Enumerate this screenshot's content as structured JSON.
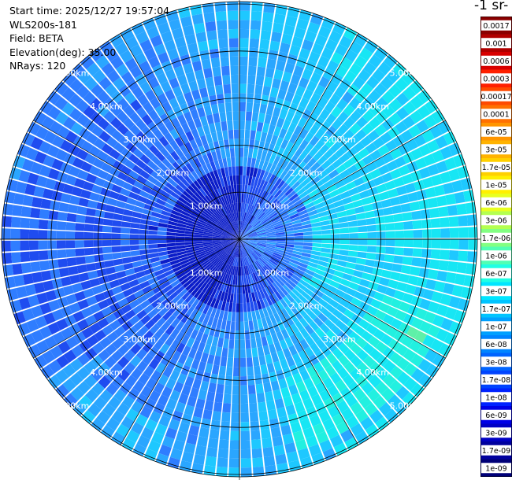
{
  "info": {
    "start_time": "Start time: 2025/12/27 19:57:04",
    "instrument": "WLS200s-181",
    "field": "Field: BETA",
    "elevation": "Elevation(deg): 35.00",
    "nrays": "NRays: 120"
  },
  "colorbar_title": "-1 sr-",
  "chart_data": {
    "type": "heatmap",
    "projection": "polar PPI scan",
    "field": "BETA",
    "elevation_deg": 35.0,
    "n_rays": 120,
    "range_rings_km": [
      1.0,
      2.0,
      3.0,
      4.0,
      5.0
    ],
    "range_ring_labels": [
      "1.00km",
      "2.00km",
      "3.00km",
      "4.00km",
      "5.00km"
    ],
    "azimuth_spokes_deg": [
      0,
      30,
      60,
      90,
      120,
      150,
      180,
      210,
      240,
      270,
      300,
      330
    ],
    "colorbar_ticks": [
      "0.0017",
      "0.001",
      "0.0006",
      "0.0003",
      "0.00017",
      "0.0001",
      "6e-05",
      "3e-05",
      "1.7e-05",
      "1e-05",
      "6e-06",
      "3e-06",
      "1.7e-06",
      "1e-06",
      "6e-07",
      "3e-07",
      "1.7e-07",
      "1e-07",
      "6e-08",
      "3e-08",
      "1.7e-08",
      "1e-08",
      "6e-09",
      "3e-09",
      "1.7e-09",
      "1e-09"
    ],
    "colorbar_colors": [
      "#8b0000",
      "#b00000",
      "#d80000",
      "#ff2000",
      "#ff4a00",
      "#ff7000",
      "#ff9500",
      "#ffb300",
      "#ffd000",
      "#fff000",
      "#e8ff20",
      "#b4ff50",
      "#82ff82",
      "#50ffb4",
      "#20ffe4",
      "#00e6ff",
      "#00c4ff",
      "#00a0ff",
      "#0084ff",
      "#0064ff",
      "#0044ff",
      "#0022ff",
      "#0000e6",
      "#0000c4",
      "#00009e",
      "#000078"
    ],
    "beta_pattern": {
      "east_sector": "3e-08 to 1e-07",
      "west_sector": "6e-09 to 3e-08",
      "near_center": "1.7e-09 to 1e-08",
      "southeast_band": "1e-07 to 6e-07"
    }
  }
}
